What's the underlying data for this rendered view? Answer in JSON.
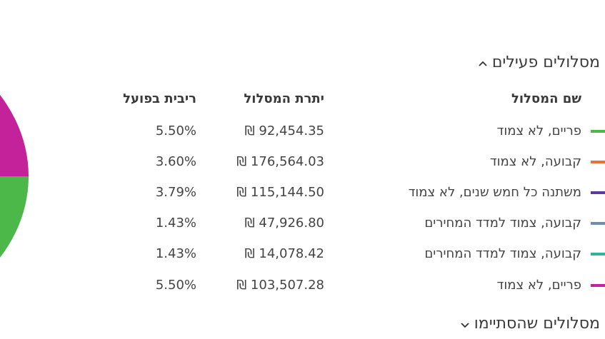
{
  "sections": {
    "active_title": "מסלולים פעילים",
    "finished_title": "מסלולים שהסתיימו"
  },
  "table": {
    "headers": {
      "name": "שם המסלול",
      "balance": "יתרת המסלול",
      "rate": "ריבית בפועל"
    },
    "rows": [
      {
        "name": "פריים, לא צמוד",
        "balance": "₪ 92,454.35",
        "rate": "5.50%",
        "color": "#4cb84a"
      },
      {
        "name": "קבועה, לא צמוד",
        "balance": "₪ 176,564.03",
        "rate": "3.60%",
        "color": "#e8703a"
      },
      {
        "name": "משתנה כל חמש שנים, לא צמוד",
        "balance": "₪ 115,144.50",
        "rate": "3.79%",
        "color": "#5a3a9e"
      },
      {
        "name": "קבועה, צמוד למדד המחירים",
        "balance": "₪ 47,926.80",
        "rate": "1.43%",
        "color": "#6c8fb0"
      },
      {
        "name": "קבועה, צמוד למדד המחירים",
        "balance": "₪ 14,078.42",
        "rate": "1.43%",
        "color": "#2fb39a"
      },
      {
        "name": "פריים, לא צמוד",
        "balance": "₪ 103,507.28",
        "rate": "5.50%",
        "color": "#c4229a"
      }
    ]
  },
  "pie": {
    "visible_colors": [
      "#c4229a",
      "#4cb84a"
    ]
  },
  "icons": {
    "active_toggle": "chevron-up-icon",
    "finished_toggle": "chevron-down-icon"
  }
}
